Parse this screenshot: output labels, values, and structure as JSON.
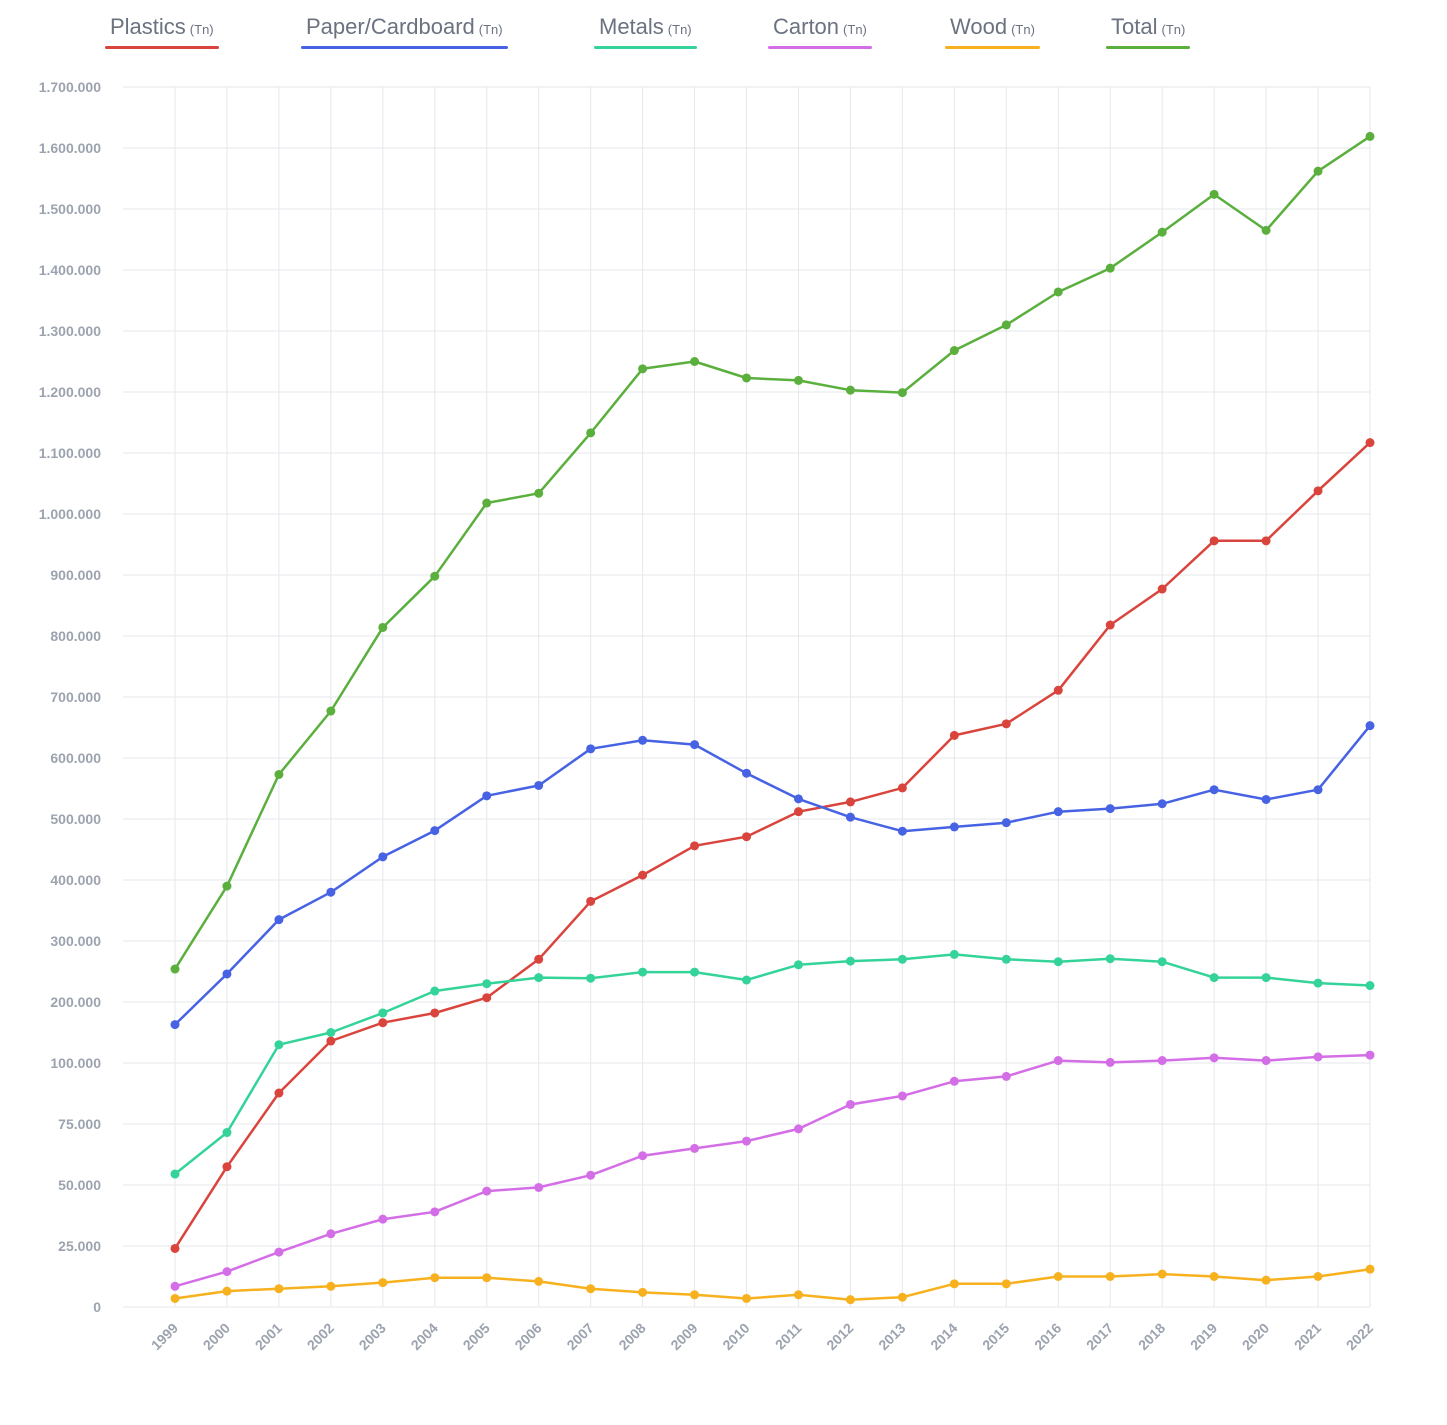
{
  "legend": [
    {
      "label": "Plastics",
      "unit": "(Tn)",
      "color": "#d9453d"
    },
    {
      "label": "Paper/Cardboard",
      "unit": "(Tn)",
      "color": "#4763e4"
    },
    {
      "label": "Metals",
      "unit": "(Tn)",
      "color": "#34d399"
    },
    {
      "label": "Carton",
      "unit": "(Tn)",
      "color": "#d46ee6"
    },
    {
      "label": "Wood",
      "unit": "(Tn)",
      "color": "#f7b11e"
    },
    {
      "label": "Total",
      "unit": "(Tn)",
      "color": "#5aaf3d"
    }
  ],
  "chart_data": {
    "type": "line",
    "title": "",
    "xlabel": "",
    "ylabel": "",
    "grid": true,
    "legend_position": "top",
    "y_scale": "piecewise linear: 0-100.000 in steps of 25.000, then 100.000-1.700.000 in steps of 100.000",
    "x": [
      "1999",
      "2000",
      "2001",
      "2002",
      "2003",
      "2004",
      "2005",
      "2006",
      "2007",
      "2008",
      "2009",
      "2010",
      "2011",
      "2012",
      "2013",
      "2014",
      "2015",
      "2016",
      "2017",
      "2018",
      "2019",
      "2020",
      "2021",
      "2022"
    ],
    "y_ticks": [
      0,
      25000,
      50000,
      75000,
      100000,
      200000,
      300000,
      400000,
      500000,
      600000,
      700000,
      800000,
      900000,
      1000000,
      1100000,
      1200000,
      1300000,
      1400000,
      1500000,
      1600000,
      1700000
    ],
    "y_tick_labels": [
      "0",
      "25.000",
      "50.000",
      "75.000",
      "100.000",
      "200.000",
      "300.000",
      "400.000",
      "500.000",
      "600.000",
      "700.000",
      "800.000",
      "900.000",
      "1.000.000",
      "1.100.000",
      "1.200.000",
      "1.300.000",
      "1.400.000",
      "1.500.000",
      "1.600.000",
      "1.700.000"
    ],
    "ylim": [
      0,
      1700000
    ],
    "series": [
      {
        "name": "Plastics",
        "color": "#d9453d",
        "values": [
          24000,
          57500,
          87700,
          136000,
          166000,
          182000,
          207000,
          270000,
          365000,
          408000,
          456000,
          471000,
          512000,
          528000,
          551000,
          637000,
          656000,
          711000,
          818000,
          877000,
          956000,
          956000,
          1038000,
          1117000
        ]
      },
      {
        "name": "Paper/Cardboard",
        "color": "#4763e4",
        "values": [
          163000,
          246000,
          335000,
          380000,
          438000,
          481000,
          538000,
          555000,
          615000,
          629000,
          622000,
          575000,
          533000,
          503000,
          480000,
          487000,
          494000,
          512000,
          517000,
          525000,
          548000,
          532000,
          548000,
          653000
        ]
      },
      {
        "name": "Metals",
        "color": "#34d399",
        "values": [
          54500,
          71500,
          130000,
          150000,
          182000,
          218000,
          230000,
          240000,
          239000,
          249000,
          249000,
          236000,
          261000,
          267000,
          270000,
          278000,
          270000,
          266000,
          271000,
          266000,
          240000,
          240000,
          231000,
          227000
        ]
      },
      {
        "name": "Carton",
        "color": "#d46ee6",
        "values": [
          8500,
          14500,
          22500,
          30000,
          36000,
          39000,
          47500,
          49000,
          54000,
          62000,
          65000,
          68000,
          73000,
          83000,
          86500,
          92500,
          94500,
          104000,
          101000,
          104000,
          108500,
          104000,
          110000,
          113000
        ]
      },
      {
        "name": "Wood",
        "color": "#f7b11e",
        "values": [
          3500,
          6500,
          7500,
          8500,
          10000,
          12000,
          12000,
          10500,
          7500,
          6000,
          5000,
          3500,
          5000,
          3000,
          4000,
          9500,
          9500,
          12500,
          12500,
          13500,
          12500,
          11000,
          12500,
          15500
        ]
      },
      {
        "name": "Total",
        "color": "#5aaf3d",
        "values": [
          254000,
          390000,
          573000,
          677000,
          814000,
          898000,
          1018000,
          1034000,
          1133000,
          1238000,
          1250000,
          1223000,
          1219000,
          1203000,
          1199000,
          1268000,
          1310000,
          1364000,
          1403000,
          1462000,
          1524000,
          1465000,
          1562000,
          1619000
        ]
      }
    ]
  }
}
